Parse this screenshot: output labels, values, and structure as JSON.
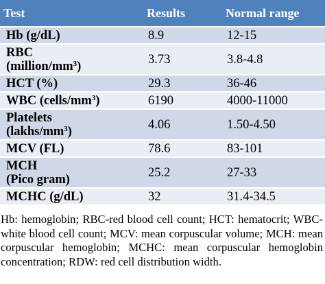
{
  "header": {
    "test": "Test",
    "results": "Results",
    "normal_range": "Normal range"
  },
  "rows": [
    {
      "test": "Hb (g/dL)",
      "result": "8.9",
      "normal": "12-15"
    },
    {
      "test_line1": "RBC",
      "test_line2_base": "(million/mm",
      "test_line2_sup": "3",
      "test_line2_end": ")",
      "result": "3.73",
      "normal": "3.8-4.8"
    },
    {
      "test": "HCT (%)",
      "result": "29.3",
      "normal": "36-46"
    },
    {
      "test_base": "WBC (cells/mm",
      "test_sup": "3",
      "test_end": ")",
      "result": "6190",
      "normal": "4000-11000"
    },
    {
      "test_line1": "Platelets",
      "test_line2_base": "(lakhs/mm",
      "test_line2_sup": "3",
      "test_line2_end": ")",
      "result": "4.06",
      "normal": "1.50-4.50"
    },
    {
      "test": "MCV (FL)",
      "result": "78.6",
      "normal": "83-101"
    },
    {
      "test_line1": "MCH",
      "test_line2": "(Pico gram)",
      "result": "25.2",
      "normal": "27-33"
    },
    {
      "test": "MCHC (g/dL)",
      "result": "32",
      "normal": "31.4-34.5"
    }
  ],
  "footnote": "Hb: hemoglobin; RBC-red blood cell count; HCT: hematocrit; WBC-white blood cell count; MCV: mean corpuscular volume; MCH: mean corpuscular hemoglobin; MCHC: mean corpuscular hemoglobin concentration; RDW: red cell distribution width.",
  "colors": {
    "header_bg": "#4f81bd",
    "row_dark": "#d0d8e8",
    "row_light": "#e9edf4"
  }
}
